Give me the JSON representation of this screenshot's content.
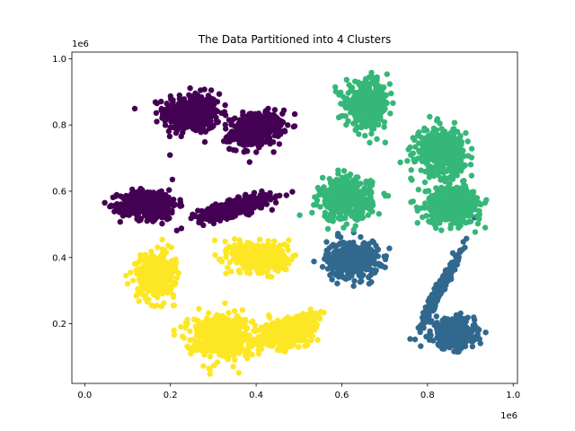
{
  "chart_data": {
    "type": "scatter",
    "title": "The Data Partitioned into 4 Clusters",
    "xlabel": "",
    "ylabel": "",
    "x_offset_label": "1e6",
    "y_offset_label": "1e6",
    "xlim": [
      -30000,
      1010000
    ],
    "ylim": [
      20000,
      1020000
    ],
    "x_ticks": [
      0,
      200000,
      400000,
      600000,
      800000,
      1000000
    ],
    "x_tick_labels": [
      "0.0",
      "0.2",
      "0.4",
      "0.6",
      "0.8",
      "1.0"
    ],
    "y_ticks": [
      200000,
      400000,
      600000,
      800000,
      1000000
    ],
    "y_tick_labels": [
      "0.2",
      "0.4",
      "0.6",
      "0.8",
      "1.0"
    ],
    "grid": false,
    "legend": "none",
    "series": [
      {
        "color": "#440154",
        "blobs": [
          {
            "cx": 250000,
            "cy": 835000,
            "sx": 33000,
            "sy": 30000,
            "rho": 0.0,
            "n": 420
          },
          {
            "cx": 400000,
            "cy": 785000,
            "sx": 30000,
            "sy": 25000,
            "rho": 0.2,
            "n": 380
          },
          {
            "cx": 150000,
            "cy": 560000,
            "sx": 33000,
            "sy": 22000,
            "rho": 0.0,
            "n": 420
          },
          {
            "cx": 350000,
            "cy": 550000,
            "sx": 42000,
            "sy": 18000,
            "rho": 0.75,
            "n": 380
          }
        ]
      },
      {
        "color": "#31688e",
        "blobs": [
          {
            "cx": 625000,
            "cy": 395000,
            "sx": 30000,
            "sy": 28000,
            "rho": 0.0,
            "n": 400
          },
          {
            "cx": 830000,
            "cy": 310000,
            "sx": 22000,
            "sy": 52000,
            "rho": 0.97,
            "n": 320
          },
          {
            "cx": 860000,
            "cy": 170000,
            "sx": 25000,
            "sy": 22000,
            "rho": 0.0,
            "n": 420
          }
        ]
      },
      {
        "color": "#35b779",
        "blobs": [
          {
            "cx": 660000,
            "cy": 860000,
            "sx": 25000,
            "sy": 33000,
            "rho": 0.0,
            "n": 400
          },
          {
            "cx": 830000,
            "cy": 720000,
            "sx": 28000,
            "sy": 35000,
            "rho": 0.0,
            "n": 420
          },
          {
            "cx": 610000,
            "cy": 575000,
            "sx": 30000,
            "sy": 32000,
            "rho": 0.0,
            "n": 400
          },
          {
            "cx": 860000,
            "cy": 560000,
            "sx": 32000,
            "sy": 28000,
            "rho": 0.0,
            "n": 420
          }
        ]
      },
      {
        "color": "#fde725",
        "blobs": [
          {
            "cx": 165000,
            "cy": 345000,
            "sx": 22000,
            "sy": 33000,
            "rho": 0.0,
            "n": 380
          },
          {
            "cx": 410000,
            "cy": 400000,
            "sx": 33000,
            "sy": 24000,
            "rho": 0.0,
            "n": 380
          },
          {
            "cx": 320000,
            "cy": 165000,
            "sx": 40000,
            "sy": 33000,
            "rho": 0.0,
            "n": 440
          },
          {
            "cx": 480000,
            "cy": 175000,
            "sx": 33000,
            "sy": 25000,
            "rho": 0.4,
            "n": 400
          }
        ]
      }
    ]
  }
}
